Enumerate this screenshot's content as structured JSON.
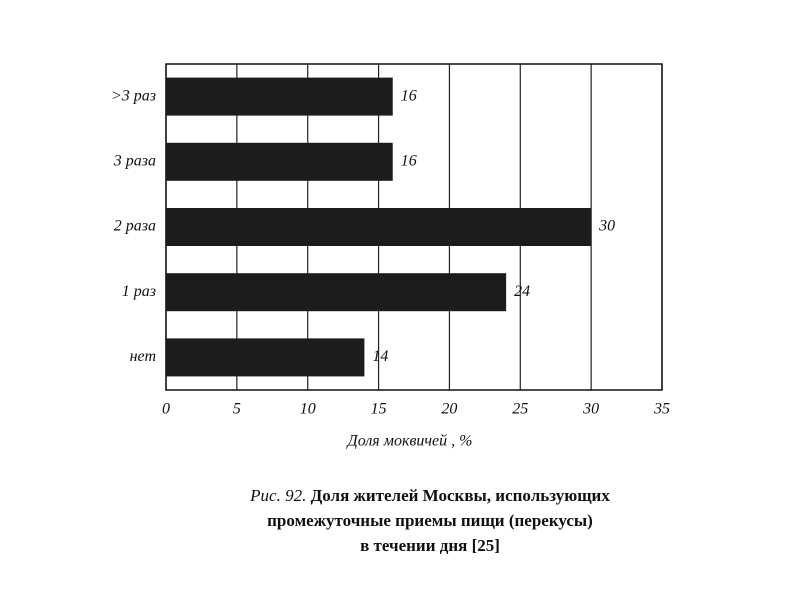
{
  "chart_data": {
    "type": "bar",
    "orientation": "horizontal",
    "categories": [
      ">3 раз",
      "3 раза",
      "2 раза",
      "1 раз",
      "нет"
    ],
    "values": [
      16,
      16,
      30,
      24,
      14
    ],
    "color": "#1e1b1f",
    "xlabel": "Доля моквичей ,  %",
    "xlim": [
      0,
      35
    ],
    "xticks": [
      0,
      5,
      10,
      15,
      20,
      25,
      30,
      35
    ],
    "grid": true,
    "caption_label": "Рис. 92.",
    "caption": [
      "Доля жителей Москвы, использующих",
      "промежуточные приемы пищи (перекусы)",
      "в течении дня [25]"
    ]
  }
}
